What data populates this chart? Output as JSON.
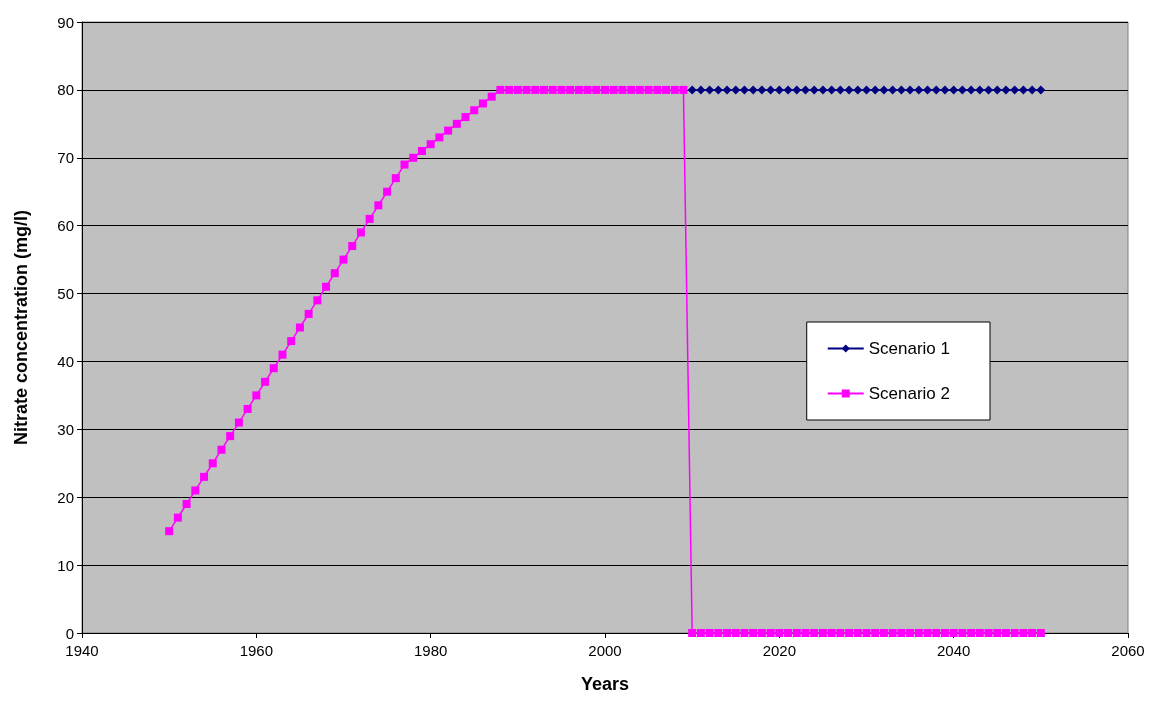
{
  "chart_data": {
    "type": "line",
    "xlabel": "Years",
    "ylabel": "Nitrate concentration (mg/l)",
    "x": [
      1950,
      1951,
      1952,
      1953,
      1954,
      1955,
      1956,
      1957,
      1958,
      1959,
      1960,
      1961,
      1962,
      1963,
      1964,
      1965,
      1966,
      1967,
      1968,
      1969,
      1970,
      1971,
      1972,
      1973,
      1974,
      1975,
      1976,
      1977,
      1978,
      1979,
      1980,
      1981,
      1982,
      1983,
      1984,
      1985,
      1986,
      1987,
      1988,
      1989,
      1990,
      1991,
      1992,
      1993,
      1994,
      1995,
      1996,
      1997,
      1998,
      1999,
      2000,
      2001,
      2002,
      2003,
      2004,
      2005,
      2006,
      2007,
      2008,
      2009,
      2010,
      2011,
      2012,
      2013,
      2014,
      2015,
      2016,
      2017,
      2018,
      2019,
      2020,
      2021,
      2022,
      2023,
      2024,
      2025,
      2026,
      2027,
      2028,
      2029,
      2030,
      2031,
      2032,
      2033,
      2034,
      2035,
      2036,
      2037,
      2038,
      2039,
      2040,
      2041,
      2042,
      2043,
      2044,
      2045,
      2046,
      2047,
      2048,
      2049,
      2050
    ],
    "series": [
      {
        "name": "Scenario 1",
        "color": "#000080",
        "marker": "diamond",
        "values": [
          null,
          null,
          null,
          null,
          null,
          null,
          null,
          null,
          null,
          null,
          null,
          null,
          null,
          null,
          null,
          null,
          null,
          null,
          null,
          null,
          null,
          null,
          null,
          null,
          null,
          null,
          null,
          null,
          null,
          null,
          null,
          null,
          null,
          null,
          null,
          null,
          null,
          null,
          null,
          null,
          null,
          null,
          null,
          null,
          null,
          null,
          null,
          null,
          null,
          null,
          null,
          null,
          null,
          null,
          null,
          null,
          null,
          null,
          null,
          null,
          80,
          80,
          80,
          80,
          80,
          80,
          80,
          80,
          80,
          80,
          80,
          80,
          80,
          80,
          80,
          80,
          80,
          80,
          80,
          80,
          80,
          80,
          80,
          80,
          80,
          80,
          80,
          80,
          80,
          80,
          80,
          80,
          80,
          80,
          80,
          80,
          80,
          80,
          80,
          80,
          80
        ]
      },
      {
        "name": "Scenario 2",
        "color": "#ff00ff",
        "marker": "square",
        "values": [
          15,
          17,
          19,
          21,
          23,
          25,
          27,
          29,
          31,
          33,
          35,
          37,
          39,
          41,
          43,
          45,
          47,
          49,
          51,
          53,
          55,
          57,
          59,
          61,
          63,
          65,
          67,
          69,
          70,
          71,
          72,
          73,
          74,
          75,
          76,
          77,
          78,
          79,
          80,
          80,
          80,
          80,
          80,
          80,
          80,
          80,
          80,
          80,
          80,
          80,
          80,
          80,
          80,
          80,
          80,
          80,
          80,
          80,
          80,
          80,
          0,
          0,
          0,
          0,
          0,
          0,
          0,
          0,
          0,
          0,
          0,
          0,
          0,
          0,
          0,
          0,
          0,
          0,
          0,
          0,
          0,
          0,
          0,
          0,
          0,
          0,
          0,
          0,
          0,
          0,
          0,
          0,
          0,
          0,
          0,
          0,
          0,
          0,
          0,
          0,
          0
        ]
      }
    ],
    "xlim": [
      1940,
      2060
    ],
    "xticks": [
      1940,
      1960,
      1980,
      2000,
      2020,
      2040,
      2060
    ],
    "ylim": [
      0,
      90
    ],
    "yticks": [
      0,
      10,
      20,
      30,
      40,
      50,
      60,
      70,
      80,
      90
    ],
    "grid": "y",
    "legend": "right"
  }
}
